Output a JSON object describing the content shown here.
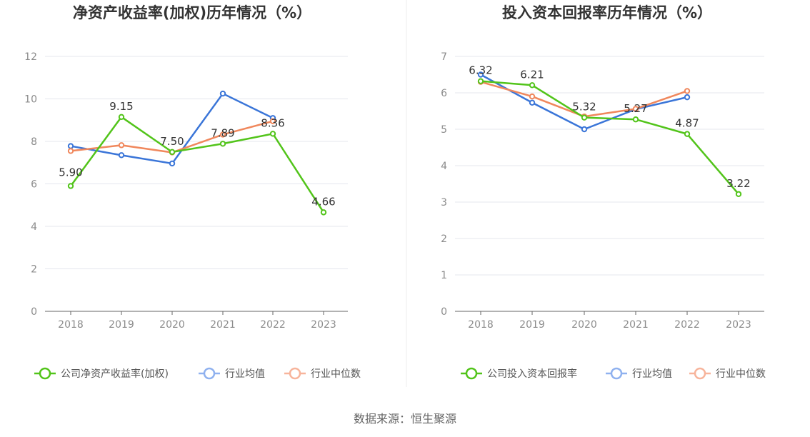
{
  "source": "数据来源：恒生聚源",
  "chart_data": [
    {
      "type": "line",
      "title": "净资产收益率(加权)历年情况（%）",
      "categories": [
        "2018",
        "2019",
        "2020",
        "2021",
        "2022",
        "2023"
      ],
      "ylim": [
        0,
        12
      ],
      "yticks": [
        "0",
        "2",
        "4",
        "6",
        "8",
        "10",
        "12"
      ],
      "grid": true,
      "legend_position": "bottom",
      "series": [
        {
          "name": "公司净资产收益率(加权)",
          "color": "#52c41a",
          "values": [
            5.9,
            9.15,
            7.5,
            7.89,
            8.36,
            4.66
          ],
          "labels": [
            "5.90",
            "9.15",
            "7.50",
            "7.89",
            "8.36",
            "4.66"
          ]
        },
        {
          "name": "行业均值",
          "color": "#3a75d8",
          "values": [
            7.78,
            7.35,
            6.96,
            10.25,
            9.1,
            null
          ]
        },
        {
          "name": "行业中位数",
          "color": "#f0875c",
          "values": [
            7.55,
            7.82,
            7.48,
            8.32,
            8.95,
            null
          ]
        }
      ]
    },
    {
      "type": "line",
      "title": "投入资本回报率历年情况（%）",
      "categories": [
        "2018",
        "2019",
        "2020",
        "2021",
        "2022",
        "2023"
      ],
      "ylim": [
        0,
        7
      ],
      "yticks": [
        "0",
        "1",
        "2",
        "3",
        "4",
        "5",
        "6",
        "7"
      ],
      "grid": true,
      "legend_position": "bottom",
      "series": [
        {
          "name": "公司投入资本回报率",
          "color": "#52c41a",
          "values": [
            6.32,
            6.21,
            5.32,
            5.27,
            4.87,
            3.22
          ],
          "labels": [
            "6.32",
            "6.21",
            "5.32",
            "5.27",
            "4.87",
            "3.22"
          ]
        },
        {
          "name": "行业均值",
          "color": "#3a75d8",
          "values": [
            6.5,
            5.73,
            5.0,
            5.55,
            5.88,
            null
          ]
        },
        {
          "name": "行业中位数",
          "color": "#f0875c",
          "values": [
            6.3,
            5.9,
            5.35,
            5.56,
            6.05,
            null
          ]
        }
      ]
    }
  ]
}
